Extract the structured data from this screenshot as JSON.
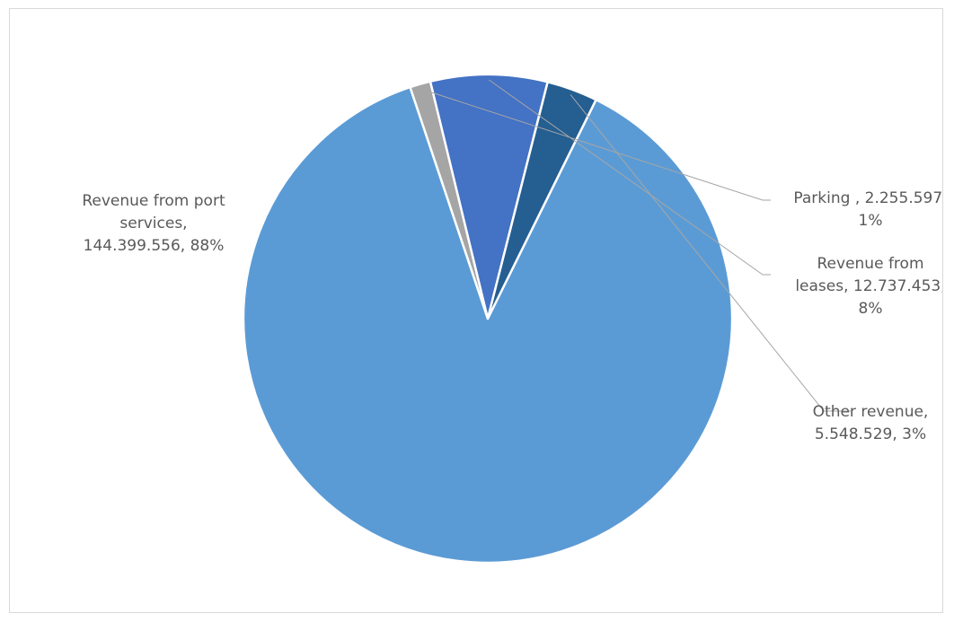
{
  "chart_data": {
    "type": "pie",
    "title": "",
    "slices": [
      {
        "name": "Revenue from port services",
        "value": 144399556,
        "percent": 88,
        "color": "#5b9bd5",
        "label_lines": [
          "Revenue from port",
          "services,",
          "144.399.556, 88%"
        ]
      },
      {
        "name": "Parking",
        "value": 2255597,
        "percent": 1,
        "color": "#a5a5a5",
        "label_lines": [
          "Parking , 2.255.597,",
          "1%"
        ]
      },
      {
        "name": "Revenue from leases",
        "value": 12737453,
        "percent": 8,
        "color": "#4472c4",
        "label_lines": [
          "Revenue from",
          "leases, 12.737.453,",
          "8%"
        ]
      },
      {
        "name": "Other revenue",
        "value": 5548529,
        "percent": 3,
        "color": "#255e91",
        "label_lines": [
          "Other revenue,",
          "5.548.529, 3%"
        ]
      }
    ],
    "leader_line_color": "#a6a6a6",
    "legend": "none"
  }
}
